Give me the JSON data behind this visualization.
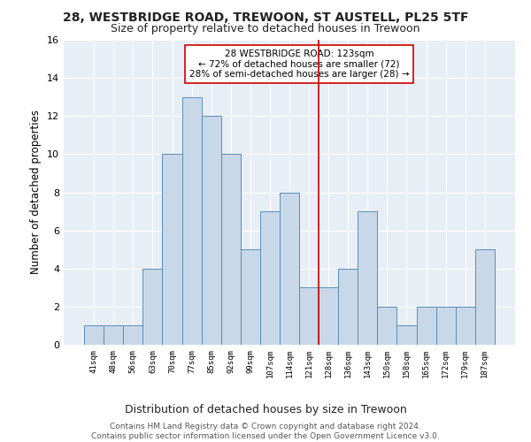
{
  "title1": "28, WESTBRIDGE ROAD, TREWOON, ST AUSTELL, PL25 5TF",
  "title2": "Size of property relative to detached houses in Trewoon",
  "xlabel": "Distribution of detached houses by size in Trewoon",
  "ylabel": "Number of detached properties",
  "categories": [
    "41sqm",
    "48sqm",
    "56sqm",
    "63sqm",
    "70sqm",
    "77sqm",
    "85sqm",
    "92sqm",
    "99sqm",
    "107sqm",
    "114sqm",
    "121sqm",
    "128sqm",
    "136sqm",
    "143sqm",
    "150sqm",
    "158sqm",
    "165sqm",
    "172sqm",
    "179sqm",
    "187sqm"
  ],
  "values": [
    1,
    1,
    1,
    4,
    10,
    13,
    12,
    10,
    5,
    7,
    8,
    3,
    3,
    4,
    7,
    2,
    1,
    2,
    2,
    2,
    5
  ],
  "bar_color": "#c8d8e8",
  "bar_edge_color": "#5b8db8",
  "vline_x": 11.5,
  "vline_color": "#cc0000",
  "annotation_text": "28 WESTBRIDGE ROAD: 123sqm\n← 72% of detached houses are smaller (72)\n28% of semi-detached houses are larger (28) →",
  "annotation_box_color": "#ffffff",
  "annotation_box_edge": "#cc0000",
  "annotation_fontsize": 7.5,
  "ylim": [
    0,
    16
  ],
  "yticks": [
    0,
    2,
    4,
    6,
    8,
    10,
    12,
    14,
    16
  ],
  "background_color": "#e8eef6",
  "footer": "Contains HM Land Registry data © Crown copyright and database right 2024.\nContains public sector information licensed under the Open Government Licence v3.0.",
  "title1_fontsize": 10,
  "title2_fontsize": 9,
  "xlabel_fontsize": 9,
  "ylabel_fontsize": 8.5,
  "footer_fontsize": 6.5
}
